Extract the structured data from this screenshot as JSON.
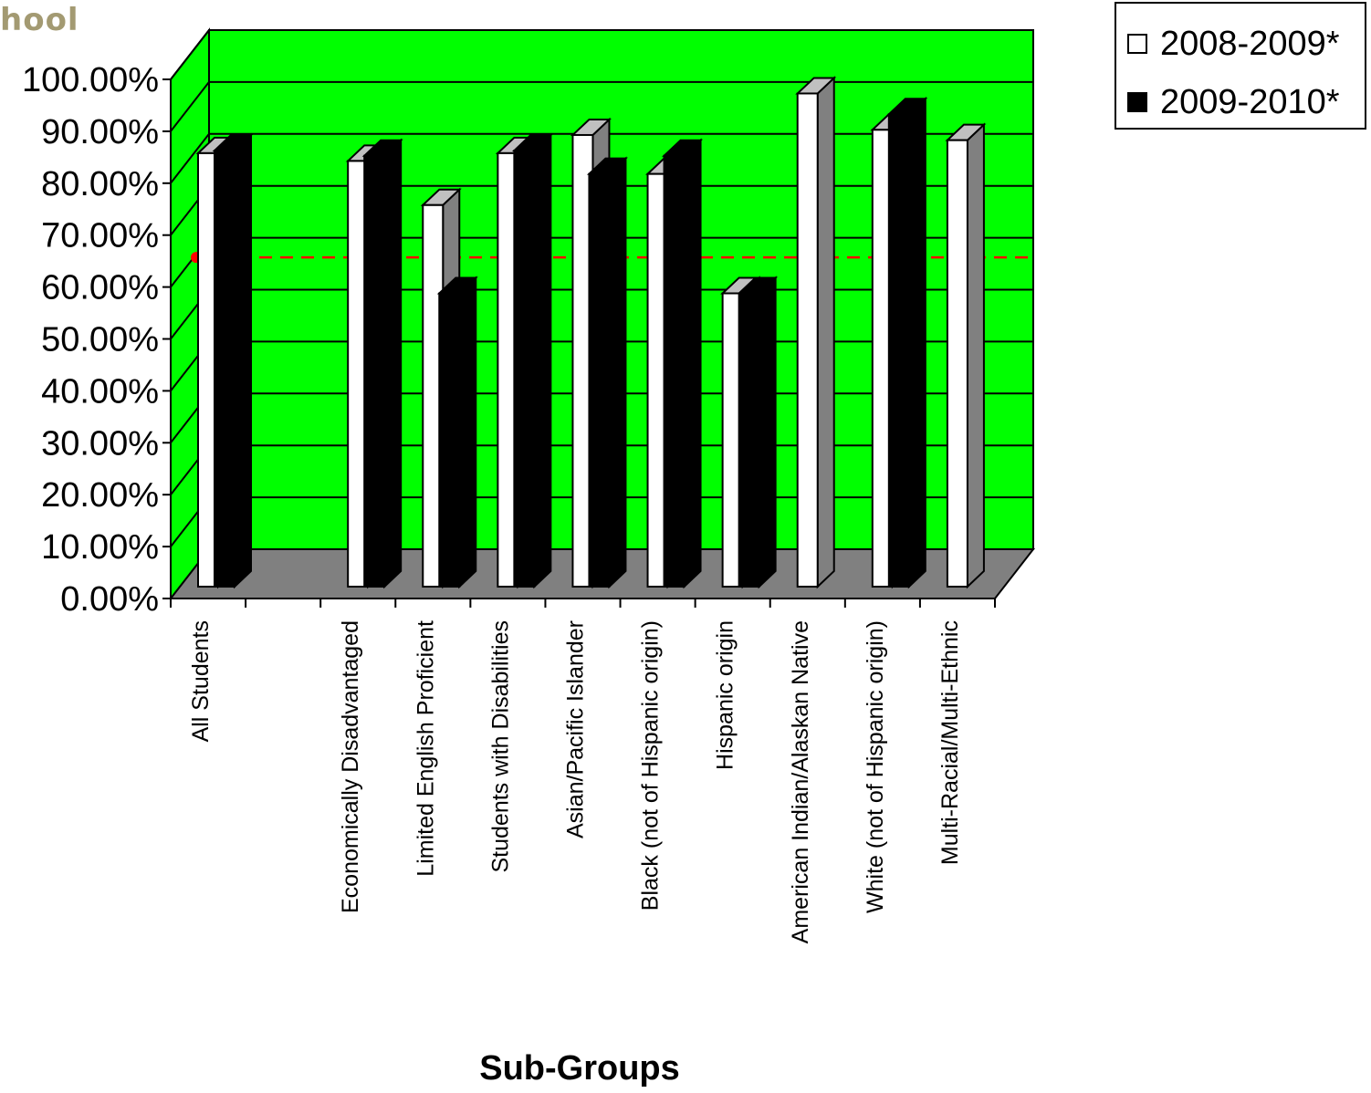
{
  "corner_text": "hool",
  "colors": {
    "back_wall": "#00ff00",
    "floor": "#808080",
    "series_2008": "#ffffff",
    "series_2009": "#000000",
    "target_line": "#ff0000"
  },
  "legend": {
    "items": [
      {
        "label": "2008-2009*",
        "swatch": "#ffffff"
      },
      {
        "label": "2009-2010*",
        "swatch": "#000000"
      }
    ]
  },
  "chart_data": {
    "type": "bar",
    "categories": [
      "All Students",
      "",
      "Economically Disadvantaged",
      "Limited English Proficient",
      "Students with Disabilities",
      "Asian/Pacific Islander",
      "Black (not of Hispanic origin)",
      "Hispanic origin",
      "American Indian/Alaskan Native",
      "White (not of Hispanic origin)",
      "Multi-Racial/Multi-Ethnic"
    ],
    "series": [
      {
        "name": "2008-2009*",
        "values": [
          83.5,
          null,
          82,
          73.5,
          83.5,
          87,
          79.5,
          56.5,
          95,
          88,
          86
        ]
      },
      {
        "name": "2009-2010*",
        "values": [
          84,
          null,
          83,
          56.5,
          84,
          79.5,
          83,
          56.5,
          null,
          91,
          null
        ]
      }
    ],
    "target_line": 65.7,
    "xlabel": "Sub-Groups",
    "ylabel": "",
    "ylim": [
      0,
      100
    ],
    "yticks": [
      "0.00%",
      "10.00%",
      "20.00%",
      "30.00%",
      "40.00%",
      "50.00%",
      "60.00%",
      "70.00%",
      "80.00%",
      "90.00%",
      "100.00%"
    ],
    "grid": true,
    "legend_position": "top-right"
  }
}
